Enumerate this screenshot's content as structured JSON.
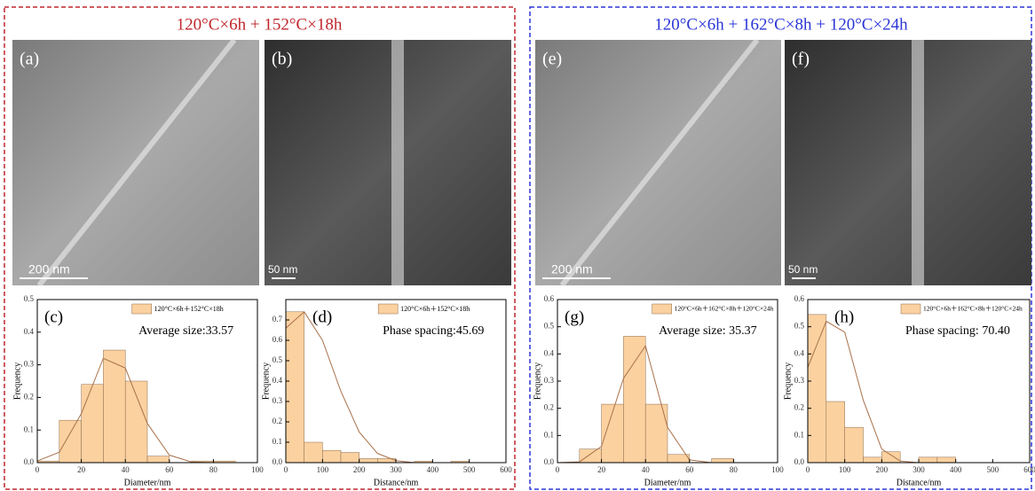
{
  "headers": [
    "120°C×6h + 152°C×18h",
    "120°C×6h + 162°C×8h + 120°C×24h"
  ],
  "panels": [
    {
      "label": "(a)",
      "scale": "200 nm"
    },
    {
      "label": "(b)",
      "scale": "50 nm"
    },
    {
      "label": "(e)",
      "scale": "200 nm"
    },
    {
      "label": "(f)",
      "scale": "50 nm"
    }
  ],
  "chart_data": [
    {
      "type": "histogram",
      "panel_label": "(c)",
      "annotation": "Average size:33.57",
      "x_label": "Diameter/nm",
      "y_label": "Frequency",
      "bins": [
        0,
        10,
        20,
        30,
        40,
        50,
        60,
        70,
        80,
        90
      ],
      "series": [
        {
          "name": "120°C×6h＋152°C×18h",
          "color": "#fbd1a0",
          "values": [
            0.005,
            0.13,
            0.24,
            0.345,
            0.25,
            0.02,
            0,
            0.005,
            0.005
          ]
        }
      ],
      "curve": {
        "color": "#a9714a",
        "x": [
          0,
          10,
          20,
          30,
          40,
          50,
          60,
          70,
          80,
          90,
          100
        ],
        "values": [
          0.005,
          0.032,
          0.15,
          0.32,
          0.29,
          0.12,
          0.023,
          0.002,
          0,
          0,
          0
        ]
      },
      "xlim": [
        0,
        100
      ],
      "xticks": [
        0,
        20,
        40,
        60,
        80,
        100
      ],
      "ylim": [
        0,
        0.5
      ],
      "yticks": [
        {
          "value": 0,
          "label": "0.0"
        },
        0.1,
        0.2,
        0.3,
        0.4,
        0.5
      ]
    },
    {
      "type": "histogram",
      "panel_label": "(d)",
      "annotation": "Phase spacing:45.69",
      "x_label": "Distance/nm",
      "y_label": "Frequency",
      "bins": [
        0,
        50,
        100,
        150,
        200,
        250,
        300,
        350,
        400,
        450,
        500
      ],
      "series": [
        {
          "name": "120°C×6h＋152°C×18h",
          "color": "#fbd1a0",
          "values": [
            0.74,
            0.1,
            0.06,
            0.05,
            0.02,
            0.02,
            0,
            0.007,
            0,
            0.007
          ]
        }
      ],
      "curve": {
        "color": "#a9714a",
        "x": [
          0,
          50,
          100,
          150,
          200,
          250,
          300,
          350,
          400,
          450,
          500,
          550,
          600
        ],
        "values": [
          0.66,
          0.74,
          0.6,
          0.35,
          0.15,
          0.045,
          0.01,
          0,
          0,
          0,
          0,
          0,
          0
        ]
      },
      "xlim": [
        0,
        600
      ],
      "xticks": [
        0,
        100,
        200,
        300,
        400,
        500,
        600
      ],
      "ylim": [
        0,
        0.8
      ],
      "yticks": [
        {
          "value": 0,
          "label": "0.0"
        },
        0.1,
        0.2,
        0.3,
        0.4,
        0.5,
        0.6,
        0.7
      ]
    },
    {
      "type": "histogram",
      "panel_label": "(g)",
      "annotation": "Average size: 35.37",
      "x_label": "Diameter/nm",
      "y_label": "Frequency",
      "bins": [
        10,
        20,
        30,
        40,
        50,
        60,
        70,
        80
      ],
      "series": [
        {
          "name": "120°C×6h＋162°C×8h＋120°C×24h",
          "color": "#fbd1a0",
          "values": [
            0.05,
            0.215,
            0.465,
            0.215,
            0.03,
            0,
            0.015
          ]
        }
      ],
      "curve": {
        "color": "#a9714a",
        "x": [
          0,
          10,
          20,
          30,
          40,
          50,
          60,
          70,
          80,
          90,
          100
        ],
        "values": [
          0,
          0.003,
          0.06,
          0.31,
          0.43,
          0.13,
          0.01,
          0,
          0,
          0,
          0
        ]
      },
      "xlim": [
        0,
        100
      ],
      "xticks": [
        0,
        20,
        40,
        60,
        80,
        100
      ],
      "ylim": [
        0,
        0.6
      ],
      "yticks": [
        {
          "value": 0,
          "label": "0.0"
        },
        0.1,
        0.2,
        0.3,
        0.4,
        0.5,
        0.6
      ]
    },
    {
      "type": "histogram",
      "panel_label": "(h)",
      "annotation": "Phase spacing: 70.40",
      "x_label": "Distance/nm",
      "y_label": "Frequency",
      "bins": [
        0,
        50,
        100,
        150,
        200,
        250,
        300,
        350,
        400
      ],
      "series": [
        {
          "name": "120°C×6h＋162°C×8h＋120°C×24h",
          "color": "#fbd1a0",
          "values": [
            0.545,
            0.225,
            0.13,
            0.02,
            0.04,
            0,
            0.02,
            0.02
          ]
        }
      ],
      "curve": {
        "color": "#a9714a",
        "x": [
          0,
          50,
          100,
          150,
          200,
          250,
          300,
          350,
          400,
          450,
          500,
          550,
          600
        ],
        "values": [
          0.35,
          0.52,
          0.48,
          0.23,
          0.05,
          0.006,
          0,
          0,
          0,
          0,
          0,
          0,
          0
        ]
      },
      "xlim": [
        0,
        600
      ],
      "xticks": [
        0,
        100,
        200,
        300,
        400,
        500,
        600
      ],
      "ylim": [
        0,
        0.6
      ],
      "yticks": [
        {
          "value": 0,
          "label": "0.0"
        },
        0.1,
        0.2,
        0.3,
        0.4,
        0.5,
        0.6
      ]
    }
  ]
}
